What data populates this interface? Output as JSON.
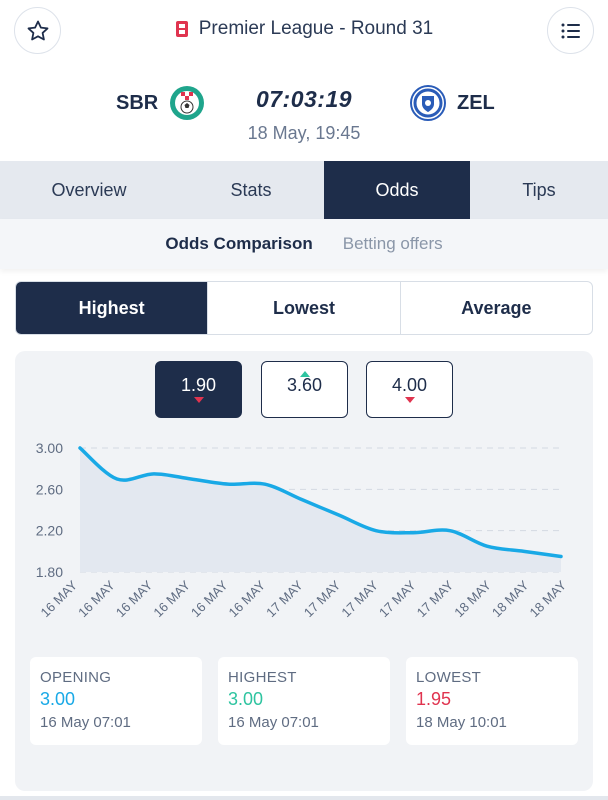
{
  "header": {
    "league_title": "Premier League - Round 31"
  },
  "match": {
    "home_team": "SBR",
    "away_team": "ZEL",
    "countdown": "07:03:19",
    "kickoff": "18 May, 19:45"
  },
  "tabs": [
    {
      "label": "Overview",
      "active": false
    },
    {
      "label": "Stats",
      "active": false
    },
    {
      "label": "Odds",
      "active": true
    },
    {
      "label": "Tips",
      "active": false
    }
  ],
  "subtabs": [
    {
      "label": "Odds Comparison",
      "active": true
    },
    {
      "label": "Betting offers",
      "active": false
    }
  ],
  "filter": [
    {
      "label": "Highest",
      "active": true
    },
    {
      "label": "Lowest",
      "active": false
    },
    {
      "label": "Average",
      "active": false
    }
  ],
  "odds_buttons": [
    {
      "value": "1.90",
      "trend": "down",
      "active": true
    },
    {
      "value": "3.60",
      "trend": "up",
      "active": false
    },
    {
      "value": "4.00",
      "trend": "down",
      "active": false
    }
  ],
  "chart_data": {
    "type": "area",
    "title": "",
    "xlabel": "",
    "ylabel": "",
    "ylim": [
      1.8,
      3.0
    ],
    "yticks": [
      "3.00",
      "2.60",
      "2.20",
      "1.80"
    ],
    "ytick_values": [
      3.0,
      2.6,
      2.2,
      1.8
    ],
    "xticks": [
      "16 MAY",
      "16 MAY",
      "16 MAY",
      "16 MAY",
      "16 MAY",
      "16 MAY",
      "17 MAY",
      "17 MAY",
      "17 MAY",
      "17 MAY",
      "17 MAY",
      "18 MAY",
      "18 MAY",
      "18 MAY"
    ],
    "values": [
      3.0,
      2.7,
      2.75,
      2.7,
      2.65,
      2.65,
      2.5,
      2.35,
      2.2,
      2.18,
      2.2,
      2.05,
      2.0,
      1.95
    ],
    "line_color": "#19a9e6",
    "fill_color": "#e3e8f0"
  },
  "stats": [
    {
      "label": "OPENING",
      "value": "3.00",
      "date": "16 May 07:01",
      "color": "#19a9e6"
    },
    {
      "label": "HIGHEST",
      "value": "3.00",
      "date": "16 May 07:01",
      "color": "#2ec4a0"
    },
    {
      "label": "LOWEST",
      "value": "1.95",
      "date": "18 May 10:01",
      "color": "#e0344f"
    }
  ]
}
